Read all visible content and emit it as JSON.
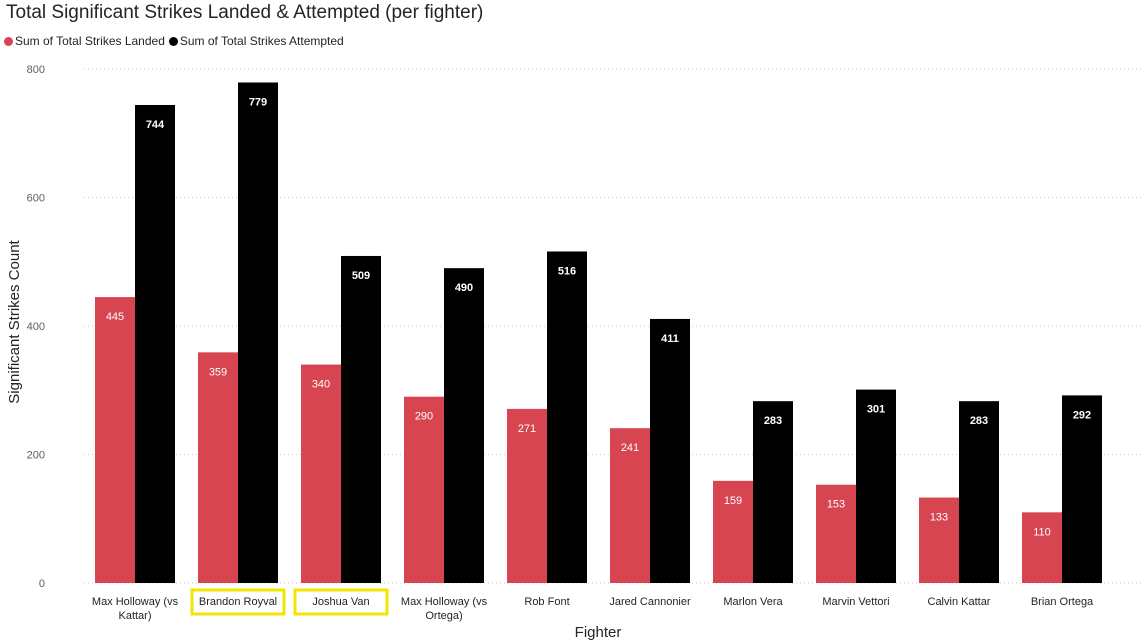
{
  "chart_data": {
    "type": "bar",
    "title": "Total Significant Strikes Landed & Attempted (per fighter)",
    "xlabel": "Fighter",
    "ylabel": "Significant Strikes Count",
    "ylim": [
      0,
      800
    ],
    "yticks": [
      0,
      200,
      400,
      600,
      800
    ],
    "grid": true,
    "legend_position": "top-left",
    "categories": [
      "Max Holloway (vs Kattar)",
      "Brandon Royval",
      "Joshua Van",
      "Max Holloway (vs Ortega)",
      "Rob Font",
      "Jared Cannonier",
      "Marlon Vera",
      "Marvin Vettori",
      "Calvin Kattar",
      "Brian Ortega"
    ],
    "highlighted_categories": [
      "Brandon Royval",
      "Joshua Van"
    ],
    "highlight_color": "#f2e600",
    "series": [
      {
        "name": "Sum of Total Strikes Landed",
        "color": "#d64550",
        "values": [
          445,
          359,
          340,
          290,
          271,
          241,
          159,
          153,
          133,
          110
        ]
      },
      {
        "name": "Sum of Total Strikes Attempted",
        "color": "#000000",
        "values": [
          744,
          779,
          509,
          490,
          516,
          411,
          283,
          301,
          283,
          292
        ]
      }
    ]
  }
}
